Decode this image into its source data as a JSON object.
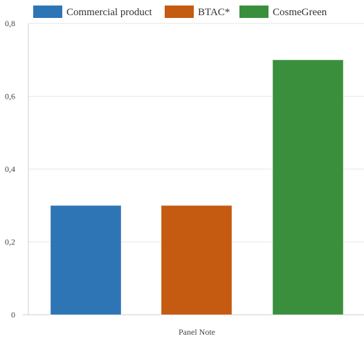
{
  "chart_data": {
    "type": "bar",
    "categories": [
      "Panel Note"
    ],
    "series": [
      {
        "name": "Commercial product",
        "values": [
          0.3
        ],
        "color": "#2e75b6"
      },
      {
        "name": "BTAC*",
        "values": [
          0.3
        ],
        "color": "#c55a11"
      },
      {
        "name": "CosmeGreen",
        "values": [
          0.7
        ],
        "color": "#3a8f3c"
      }
    ],
    "ylim": [
      0,
      0.8
    ],
    "yticks": [
      "0",
      "0,2",
      "0,4",
      "0,6",
      "0,8"
    ],
    "ytick_values": [
      0,
      0.2,
      0.4,
      0.6,
      0.8
    ],
    "grid": true,
    "legend": "top"
  }
}
